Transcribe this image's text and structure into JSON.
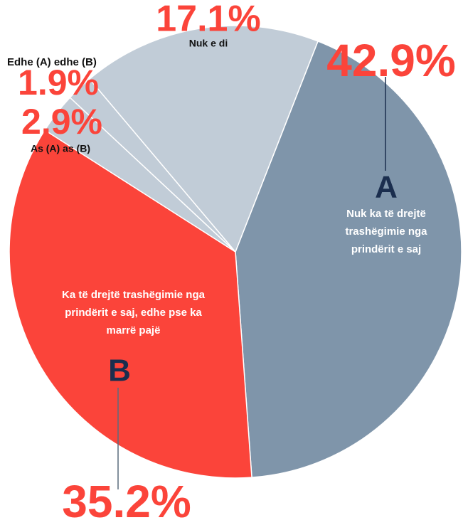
{
  "chart_data": {
    "type": "pie",
    "categories": [
      "Nuk ka të drejtë trashëgimie nga prindërit e saj",
      "Ka të drejtë trashëgimie nga prindërit e saj, edhe pse ka marrë pajë",
      "As (A) as (B)",
      "Edhe (A) edhe (B)",
      "Nuk e di"
    ],
    "values": [
      42.9,
      35.2,
      2.9,
      1.9,
      17.1
    ],
    "value_labels": [
      "42.9%",
      "35.2%",
      "2.9%",
      "1.9%",
      "17.1%"
    ],
    "colors": [
      "#7f95aa",
      "#fb443a",
      "#c1ccd7",
      "#c1ccd7",
      "#c1ccd7"
    ],
    "annotations": [
      "A",
      "B"
    ]
  }
}
